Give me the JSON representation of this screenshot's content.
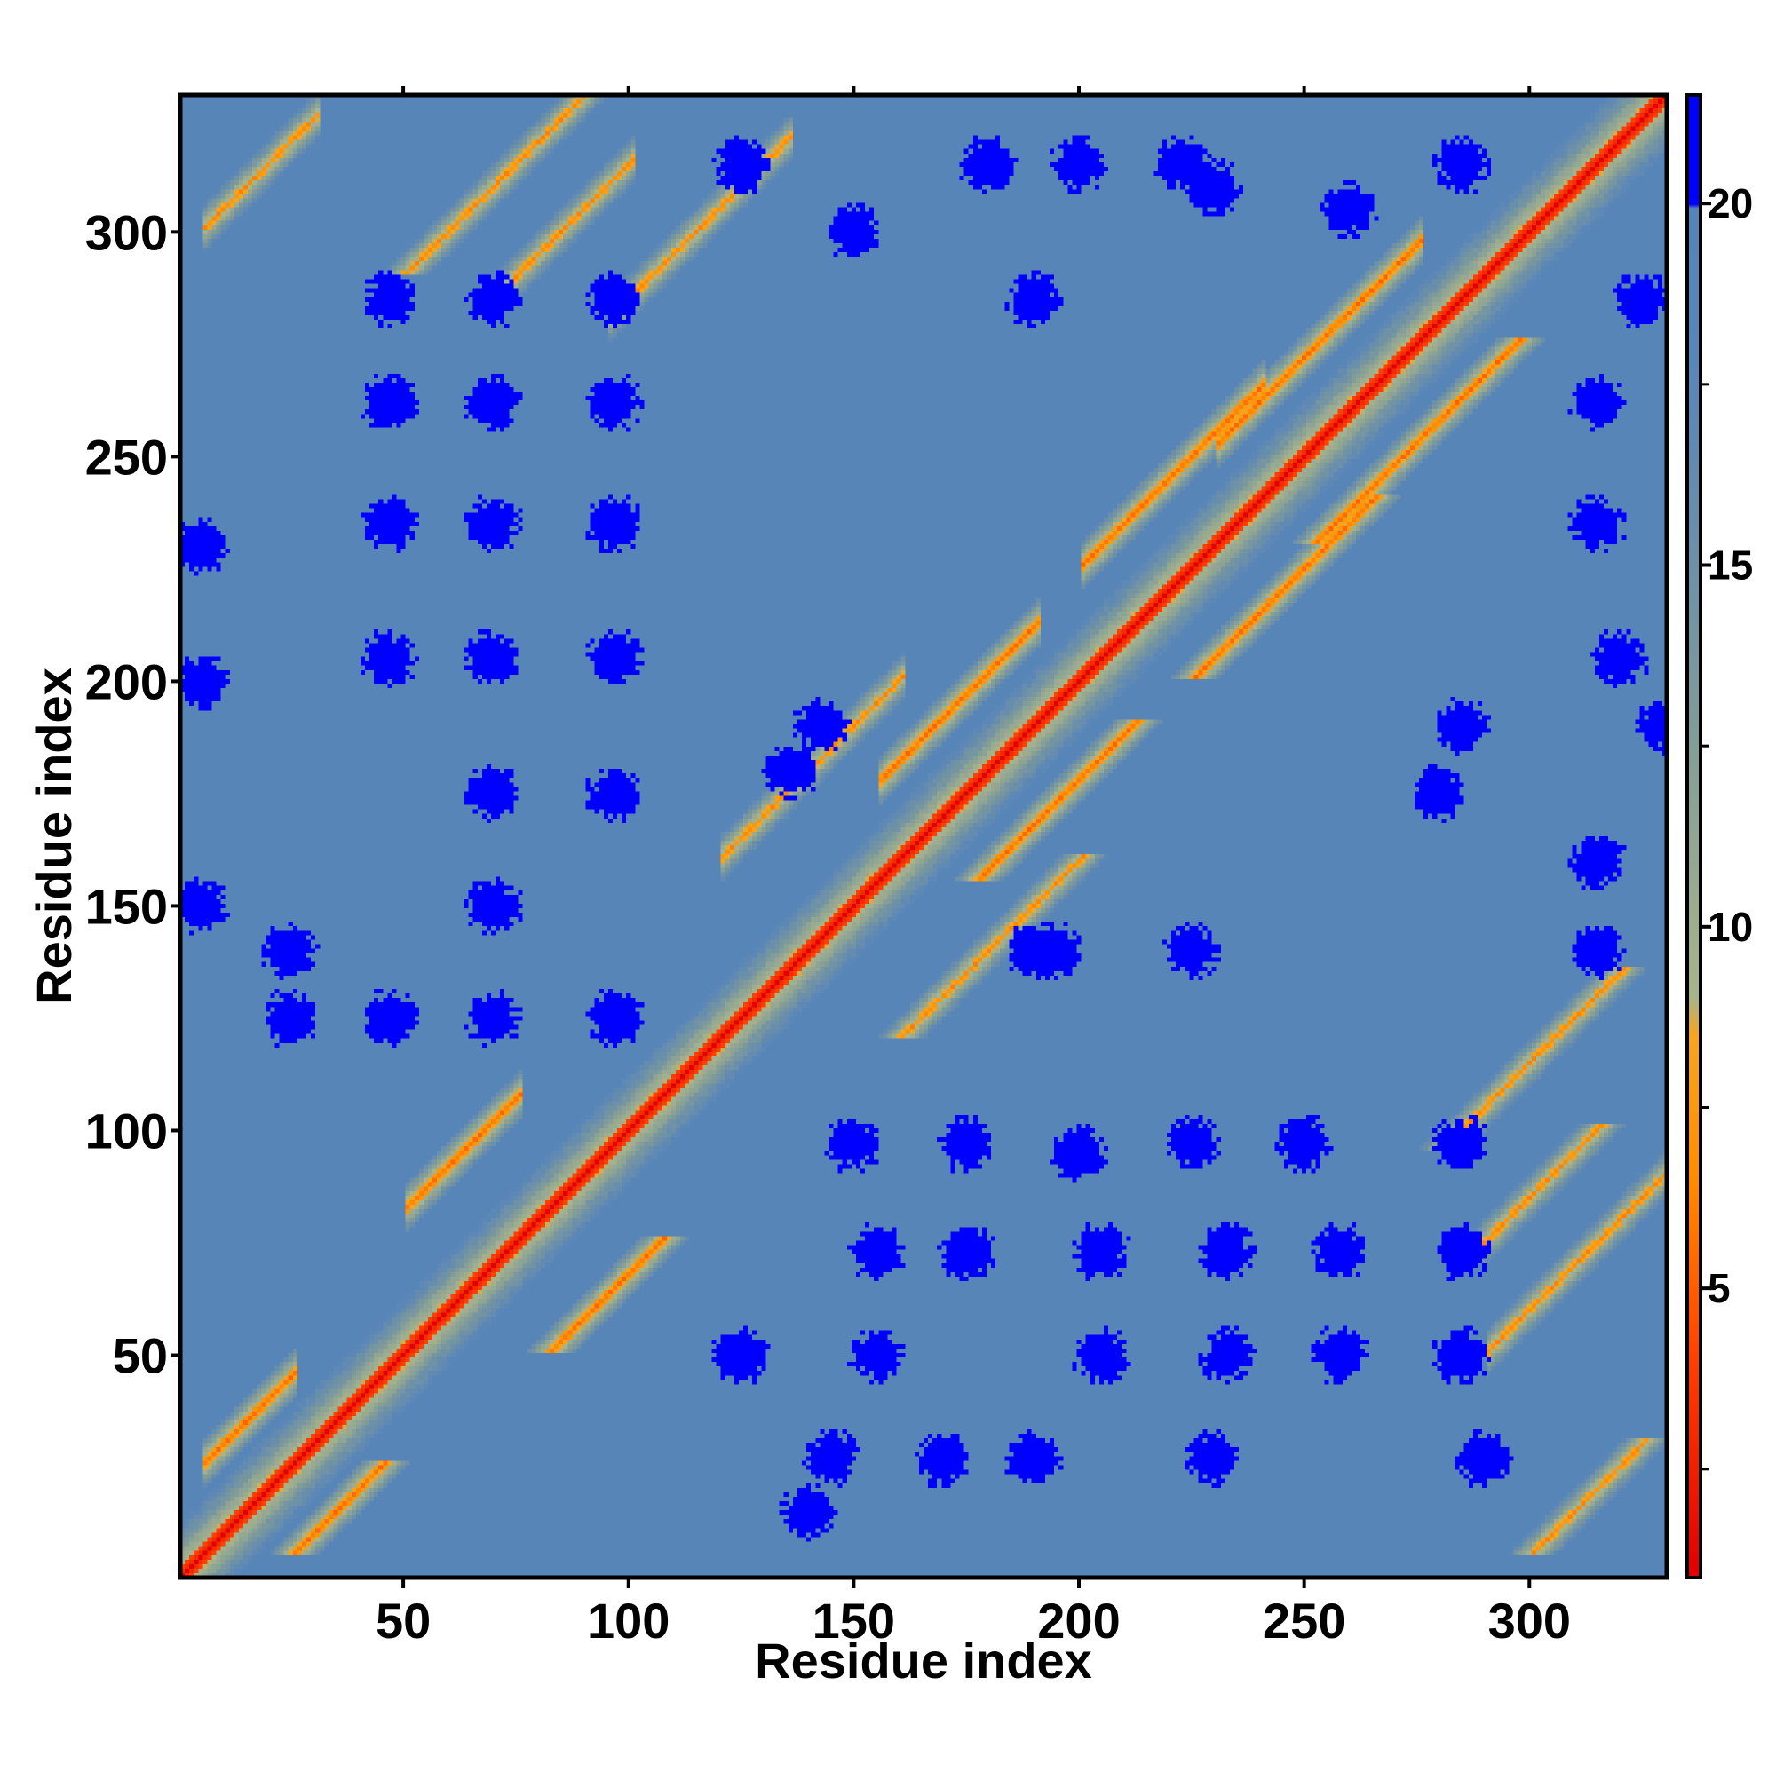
{
  "chart_data": {
    "type": "heatmap",
    "title": "",
    "xlabel": "Residue index",
    "ylabel": "Residue index",
    "n_residues": 330,
    "xlim": [
      0.5,
      330.5
    ],
    "ylim": [
      0.5,
      330.5
    ],
    "x_ticks": [
      50,
      100,
      150,
      200,
      250,
      300
    ],
    "y_ticks": [
      50,
      100,
      150,
      200,
      250,
      300
    ],
    "colorbar": {
      "ticks": [
        5,
        10,
        15,
        20
      ],
      "range": [
        1,
        21.5
      ],
      "stops": [
        {
          "value": 1.0,
          "color": "#e00000"
        },
        {
          "value": 4.0,
          "color": "#ff4000"
        },
        {
          "value": 6.5,
          "color": "#ff8c00"
        },
        {
          "value": 8.5,
          "color": "#f5a623"
        },
        {
          "value": 9.0,
          "color": "#a9b48a"
        },
        {
          "value": 13.0,
          "color": "#7e9a9a"
        },
        {
          "value": 17.5,
          "color": "#5a86b8"
        },
        {
          "value": 20.0,
          "color": "#5584b8"
        },
        {
          "value": 20.0,
          "color": "#0000ff"
        },
        {
          "value": 21.5,
          "color": "#0000ff"
        }
      ]
    },
    "description_values": {
      "diagonal_distance": 1,
      "background_distance": 19,
      "far_distance": 21
    },
    "contact_bands": [
      {
        "i": [
          3,
          100
        ],
        "j": [
          3,
          100
        ],
        "offset": 0,
        "dmin": 1.5
      },
      {
        "i": [
          100,
          330
        ],
        "j": [
          100,
          330
        ],
        "offset": 0,
        "dmin": 1.5
      },
      {
        "i": [
          5,
          25
        ],
        "j": [
          25,
          45
        ],
        "offset": 20,
        "dmin": 5
      },
      {
        "i": [
          50,
          75
        ],
        "j": [
          85,
          100
        ],
        "offset": 32,
        "dmin": 5
      },
      {
        "i": [
          155,
          190
        ],
        "j": [
          175,
          210
        ],
        "offset": 22,
        "dmin": 5
      },
      {
        "i": [
          200,
          240
        ],
        "j": [
          225,
          262
        ],
        "offset": 25,
        "dmin": 5
      },
      {
        "i": [
          230,
          275
        ],
        "j": [
          252,
          295
        ],
        "offset": 22,
        "dmin": 5
      },
      {
        "i": [
          120,
          160
        ],
        "j": [
          120,
          160
        ],
        "offset": 40,
        "dmin": 6
      },
      {
        "i": [
          5,
          30
        ],
        "j": [
          300,
          325
        ],
        "offset": 295,
        "dmin": 6
      },
      {
        "i": [
          70,
          100
        ],
        "j": [
          290,
          320
        ],
        "offset": 215,
        "dmin": 6
      },
      {
        "i": [
          95,
          135
        ],
        "j": [
          280,
          320
        ],
        "offset": 185,
        "dmin": 6
      },
      {
        "i": [
          290,
          330
        ],
        "j": [
          50,
          100
        ],
        "offset": -240,
        "dmin": 6
      }
    ],
    "far_blobs_lower": [
      [
        47,
        285
      ],
      [
        70,
        285
      ],
      [
        97,
        285
      ],
      [
        47,
        262
      ],
      [
        70,
        262
      ],
      [
        97,
        262
      ],
      [
        47,
        235
      ],
      [
        70,
        235
      ],
      [
        97,
        235
      ],
      [
        47,
        205
      ],
      [
        70,
        205
      ],
      [
        97,
        205
      ],
      [
        70,
        175
      ],
      [
        97,
        175
      ],
      [
        70,
        150
      ],
      [
        47,
        125
      ],
      [
        70,
        125
      ],
      [
        97,
        125
      ],
      [
        25,
        125
      ],
      [
        5,
        200
      ],
      [
        5,
        230
      ],
      [
        5,
        150
      ],
      [
        143,
        190
      ],
      [
        136,
        180
      ],
      [
        200,
        315
      ],
      [
        223,
        315
      ],
      [
        260,
        305
      ],
      [
        285,
        315
      ],
      [
        230,
        310
      ],
      [
        180,
        315
      ],
      [
        125,
        315
      ],
      [
        190,
        285
      ],
      [
        150,
        300
      ],
      [
        25,
        140
      ]
    ],
    "far_blobs_upper": [
      [
        150,
        97
      ],
      [
        175,
        97
      ],
      [
        200,
        95
      ],
      [
        225,
        97
      ],
      [
        250,
        97
      ],
      [
        285,
        97
      ],
      [
        155,
        73
      ],
      [
        175,
        73
      ],
      [
        205,
        73
      ],
      [
        233,
        73
      ],
      [
        258,
        73
      ],
      [
        285,
        73
      ],
      [
        125,
        50
      ],
      [
        155,
        50
      ],
      [
        205,
        50
      ],
      [
        233,
        50
      ],
      [
        258,
        50
      ],
      [
        285,
        50
      ],
      [
        145,
        27
      ],
      [
        170,
        27
      ],
      [
        190,
        27
      ],
      [
        230,
        27
      ],
      [
        290,
        27
      ],
      [
        140,
        15
      ],
      [
        190,
        140
      ],
      [
        225,
        140
      ],
      [
        315,
        140
      ],
      [
        315,
        160
      ],
      [
        315,
        235
      ],
      [
        315,
        262
      ],
      [
        330,
        190
      ],
      [
        285,
        190
      ],
      [
        280,
        175
      ],
      [
        320,
        205
      ],
      [
        325,
        285
      ],
      [
        195,
        140
      ]
    ]
  }
}
